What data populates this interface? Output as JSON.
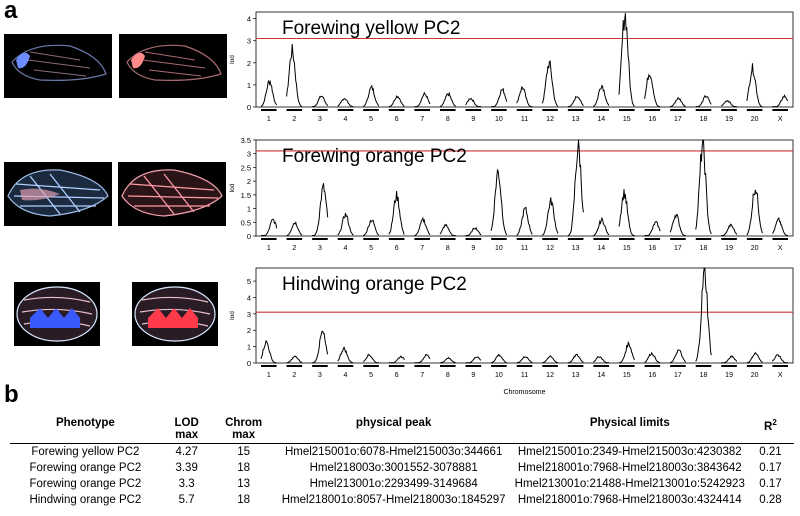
{
  "panel_a": "a",
  "panel_b": "b",
  "chart_data": [
    {
      "type": "line",
      "title": "Forewing yellow PC2",
      "ylabel": "lod",
      "xlabel": "",
      "ylim": [
        0,
        4.3
      ],
      "yticks": [
        0,
        1,
        2,
        3,
        4
      ],
      "threshold": 3.1,
      "categories": [
        "1",
        "2",
        "3",
        "4",
        "5",
        "6",
        "7",
        "8",
        "9",
        "10",
        "11",
        "12",
        "13",
        "14",
        "15",
        "16",
        "17",
        "18",
        "19",
        "20",
        "X"
      ],
      "series": [
        {
          "values": [
            1.2,
            2.6,
            0.5,
            0.4,
            0.9,
            0.5,
            0.6,
            0.6,
            0.4,
            0.8,
            0.9,
            2.0,
            0.5,
            1.0,
            4.27,
            1.6,
            0.4,
            0.5,
            0.3,
            1.8,
            0.5
          ]
        }
      ],
      "threshold_color": "#cc3333"
    },
    {
      "type": "line",
      "title": "Forewing orange PC2",
      "ylabel": "lod",
      "xlabel": "",
      "ylim": [
        0,
        3.5
      ],
      "yticks": [
        0,
        0.5,
        1.0,
        1.5,
        2.0,
        2.5,
        3.0,
        3.5
      ],
      "threshold": 3.1,
      "categories": [
        "1",
        "2",
        "3",
        "4",
        "5",
        "6",
        "7",
        "8",
        "9",
        "10",
        "11",
        "12",
        "13",
        "14",
        "15",
        "16",
        "17",
        "18",
        "19",
        "20",
        "X"
      ],
      "series": [
        {
          "values": [
            0.6,
            0.5,
            1.8,
            0.8,
            0.6,
            1.5,
            0.6,
            0.4,
            0.3,
            2.4,
            1.0,
            1.3,
            3.3,
            0.6,
            1.6,
            0.5,
            0.8,
            3.39,
            0.4,
            1.8,
            0.6
          ]
        }
      ],
      "threshold_color": "#cc3333"
    },
    {
      "type": "line",
      "title": "Hindwing orange PC2",
      "ylabel": "lod",
      "xlabel": "Chromosome",
      "ylim": [
        0,
        5.8
      ],
      "yticks": [
        0,
        1,
        2,
        3,
        4,
        5
      ],
      "threshold": 3.1,
      "categories": [
        "1",
        "2",
        "3",
        "4",
        "5",
        "6",
        "7",
        "8",
        "9",
        "10",
        "11",
        "12",
        "13",
        "14",
        "15",
        "16",
        "17",
        "18",
        "19",
        "20",
        "X"
      ],
      "series": [
        {
          "values": [
            1.3,
            0.4,
            1.9,
            0.9,
            0.5,
            0.4,
            0.5,
            0.3,
            0.4,
            0.5,
            0.4,
            0.4,
            0.5,
            0.4,
            1.2,
            0.6,
            0.8,
            5.7,
            0.4,
            0.6,
            0.5
          ]
        }
      ],
      "threshold_color": "#cc3333"
    }
  ],
  "table": {
    "headers": [
      [
        "Phenotype"
      ],
      [
        "LOD",
        "max"
      ],
      [
        "Chrom",
        "max"
      ],
      [
        "physical peak"
      ],
      [
        "Physical limits"
      ],
      [
        "R",
        "2"
      ]
    ],
    "rows": [
      [
        "Forewing yellow PC2",
        "4.27",
        "15",
        "Hmel215001o:6078-Hmel215003o:344661",
        "Hmel215001o:2349-Hmel215003o:4230382",
        "0.21"
      ],
      [
        "Forewing orange PC2",
        "3.39",
        "18",
        "Hmel218003o:3001552-3078881",
        "Hmel218001o:7968-Hmel218003o:3843642",
        "0.17"
      ],
      [
        "Forewing orange PC2",
        "3.3",
        "13",
        "Hmel213001o:2293499-3149684",
        "Hmel213001o:21488-Hmel213001o:5242923",
        "0.17"
      ],
      [
        "Hindwing orange PC2",
        "5.7",
        "18",
        "Hmel218001o:8057-Hmel218003o:1845297",
        "Hmel218001o:7968-Hmel218003o:4324414",
        "0.28"
      ]
    ]
  }
}
